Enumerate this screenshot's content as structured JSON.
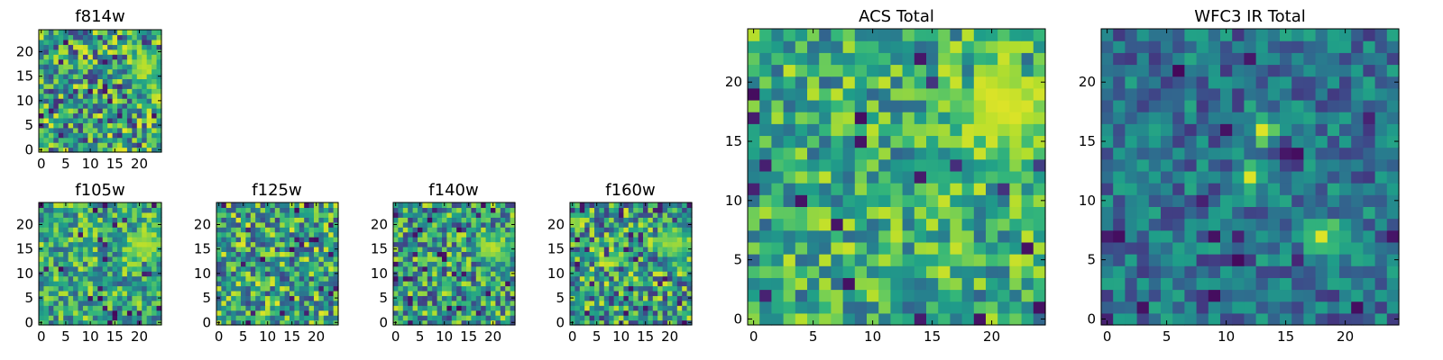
{
  "chart_data": [
    {
      "type": "heatmap",
      "title": "f814w",
      "size": 25,
      "xticks": [
        0,
        5,
        10,
        15,
        20
      ],
      "yticks": [
        0,
        5,
        10,
        15,
        20
      ],
      "xtick_labels": [
        "0",
        "5",
        "10",
        "15",
        "20"
      ],
      "ytick_labels": [
        "0",
        "5",
        "10",
        "15",
        "20"
      ],
      "colormap": "viridis",
      "bright_spots": [
        {
          "x": 21,
          "y": 17,
          "r": 2.5,
          "v": 0.9
        }
      ],
      "base_level": 0.55,
      "noise": 0.42,
      "seed": 11
    },
    {
      "type": "heatmap",
      "title": "f105w",
      "size": 25,
      "xticks": [
        0,
        5,
        10,
        15,
        20
      ],
      "yticks": [
        0,
        5,
        10,
        15,
        20
      ],
      "xtick_labels": [
        "0",
        "5",
        "10",
        "15",
        "20"
      ],
      "ytick_labels": [
        "0",
        "5",
        "10",
        "15",
        "20"
      ],
      "colormap": "viridis",
      "bright_spots": [
        {
          "x": 21,
          "y": 16,
          "r": 2.5,
          "v": 0.9
        }
      ],
      "base_level": 0.6,
      "noise": 0.32,
      "seed": 23
    },
    {
      "type": "heatmap",
      "title": "f125w",
      "size": 25,
      "xticks": [
        0,
        5,
        10,
        15,
        20
      ],
      "yticks": [
        0,
        5,
        10,
        15,
        20
      ],
      "xtick_labels": [
        "0",
        "5",
        "10",
        "15",
        "20"
      ],
      "ytick_labels": [
        "0",
        "5",
        "10",
        "15",
        "20"
      ],
      "colormap": "viridis",
      "bright_spots": [],
      "base_level": 0.58,
      "noise": 0.38,
      "seed": 37
    },
    {
      "type": "heatmap",
      "title": "f140w",
      "size": 25,
      "xticks": [
        0,
        5,
        10,
        15,
        20
      ],
      "yticks": [
        0,
        5,
        10,
        15,
        20
      ],
      "xtick_labels": [
        "0",
        "5",
        "10",
        "15",
        "20"
      ],
      "ytick_labels": [
        "0",
        "5",
        "10",
        "15",
        "20"
      ],
      "colormap": "viridis",
      "bright_spots": [
        {
          "x": 20,
          "y": 15,
          "r": 2,
          "v": 0.9
        }
      ],
      "base_level": 0.55,
      "noise": 0.38,
      "seed": 41
    },
    {
      "type": "heatmap",
      "title": "f160w",
      "size": 25,
      "xticks": [
        0,
        5,
        10,
        15,
        20
      ],
      "yticks": [
        0,
        5,
        10,
        15,
        20
      ],
      "xtick_labels": [
        "0",
        "5",
        "10",
        "15",
        "20"
      ],
      "ytick_labels": [
        "0",
        "5",
        "10",
        "15",
        "20"
      ],
      "colormap": "viridis",
      "bright_spots": [
        {
          "x": 21,
          "y": 16,
          "r": 2.5,
          "v": 0.85
        }
      ],
      "base_level": 0.55,
      "noise": 0.4,
      "seed": 53
    },
    {
      "type": "heatmap",
      "title": "ACS Total",
      "size": 25,
      "xticks": [
        0,
        5,
        10,
        15,
        20
      ],
      "yticks": [
        0,
        5,
        10,
        15,
        20
      ],
      "xtick_labels": [
        "0",
        "5",
        "10",
        "15",
        "20"
      ],
      "ytick_labels": [
        "0",
        "5",
        "10",
        "15",
        "20"
      ],
      "colormap": "viridis",
      "bright_spots": [
        {
          "x": 21,
          "y": 18,
          "r": 3,
          "v": 0.95
        }
      ],
      "base_level": 0.62,
      "noise": 0.3,
      "seed": 67
    },
    {
      "type": "heatmap",
      "title": "WFC3 IR Total",
      "size": 25,
      "xticks": [
        0,
        5,
        10,
        15,
        20
      ],
      "yticks": [
        0,
        5,
        10,
        15,
        20
      ],
      "xtick_labels": [
        "0",
        "5",
        "10",
        "15",
        "20"
      ],
      "ytick_labels": [
        "0",
        "5",
        "10",
        "15",
        "20"
      ],
      "colormap": "viridis",
      "bright_spots": [
        {
          "x": 13,
          "y": 16,
          "r": 0.8,
          "v": 0.95
        },
        {
          "x": 12,
          "y": 12,
          "r": 0.6,
          "v": 0.95
        },
        {
          "x": 18,
          "y": 7,
          "r": 1,
          "v": 0.95
        }
      ],
      "base_level": 0.38,
      "noise": 0.22,
      "seed": 79
    }
  ]
}
